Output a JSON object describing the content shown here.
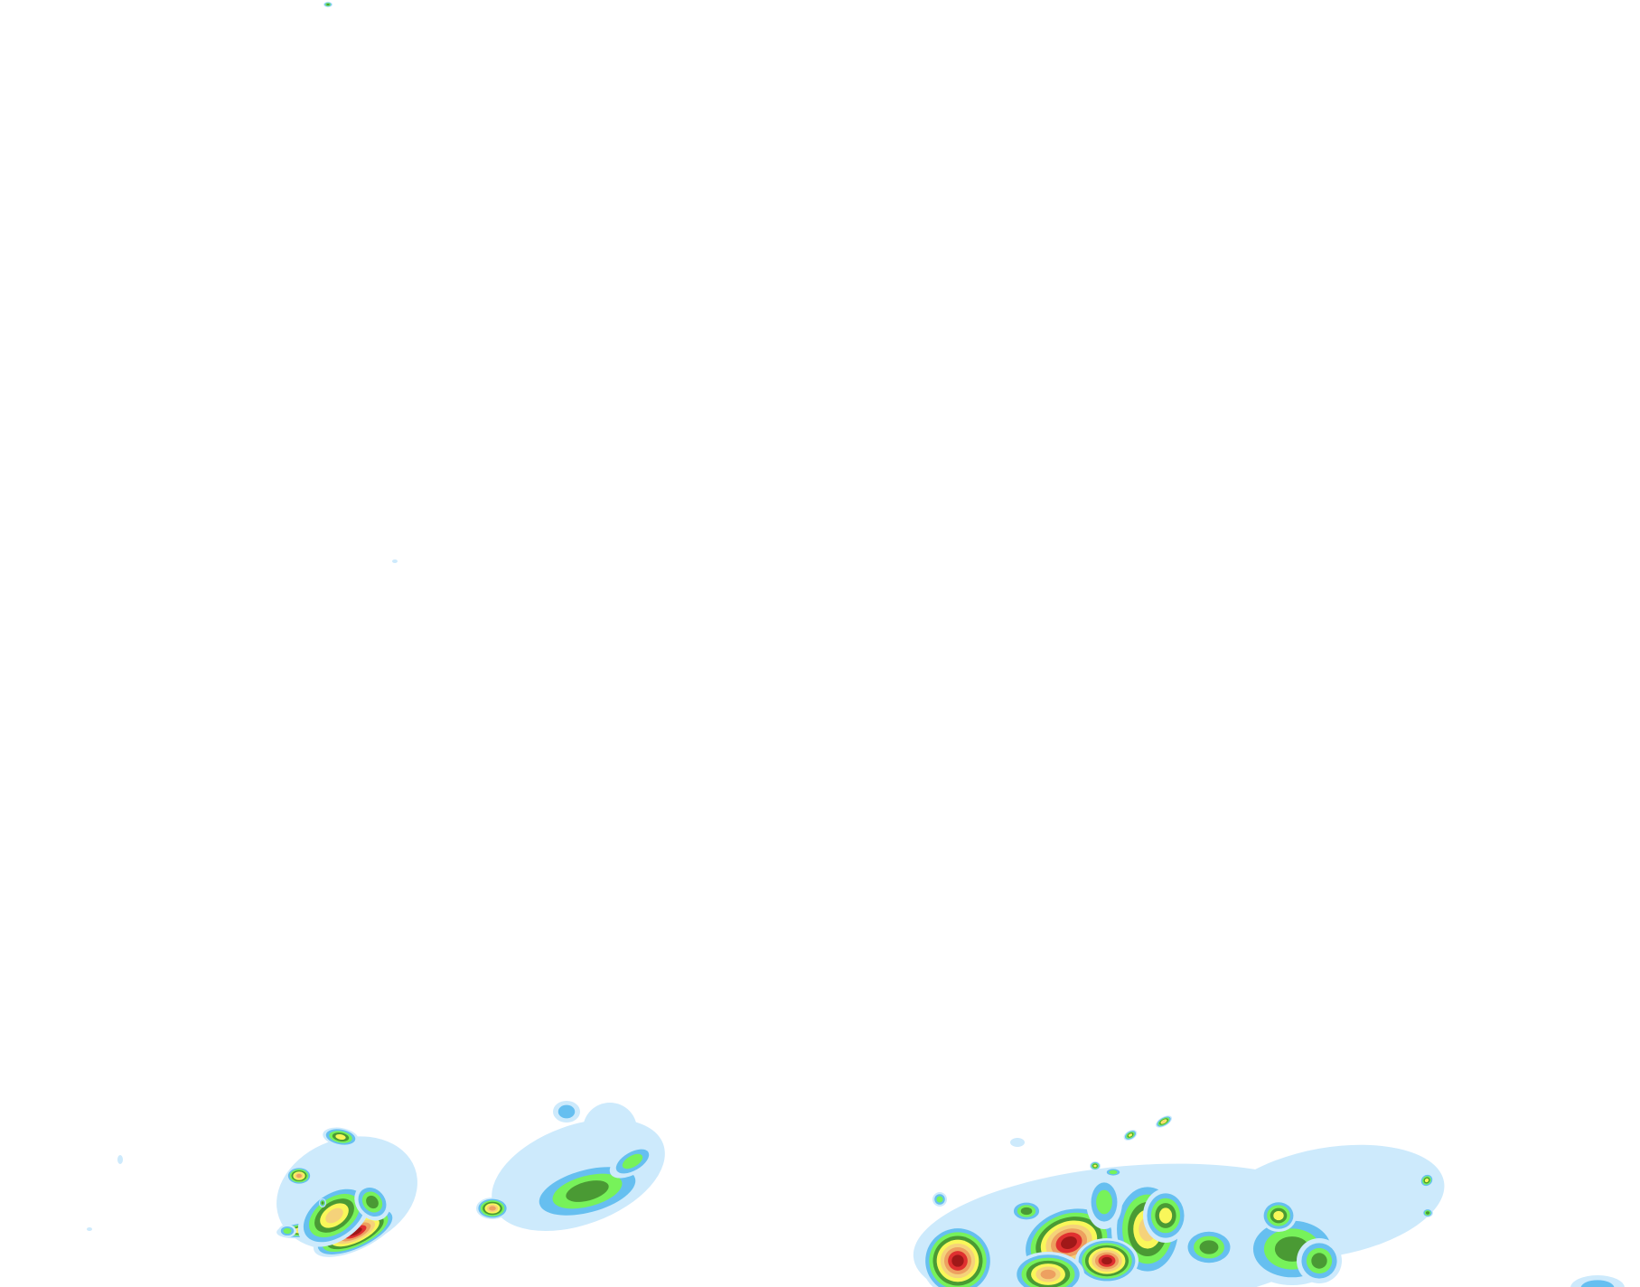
{
  "map": {
    "type": "precipitation-radar-overlay",
    "background": "#ffffff",
    "intensity_palette": [
      "#cdeafc",
      "#66bff0",
      "#77f25a",
      "#4a9a34",
      "#f9f75a",
      "#f5d27a",
      "#eda060",
      "#e03030",
      "#a01818"
    ]
  }
}
